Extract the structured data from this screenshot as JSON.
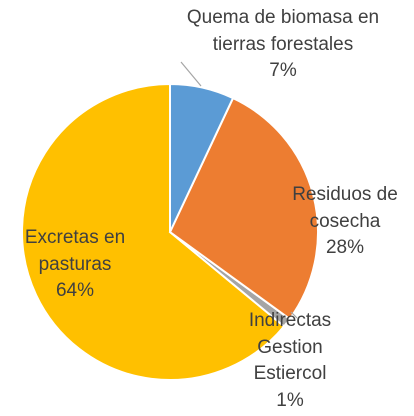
{
  "chart_data": {
    "type": "pie",
    "categories": [
      "Quema de biomasa en tierras forestales",
      "Residuos de cosecha",
      "Indirectas Gestion Estiercol",
      "Excretas en pasturas"
    ],
    "values": [
      7,
      28,
      1,
      64
    ],
    "value_labels": [
      "7%",
      "28%",
      "1%",
      "64%"
    ],
    "colors": [
      "#5b9bd5",
      "#ed7d31",
      "#a5a5a5",
      "#ffc000"
    ]
  }
}
